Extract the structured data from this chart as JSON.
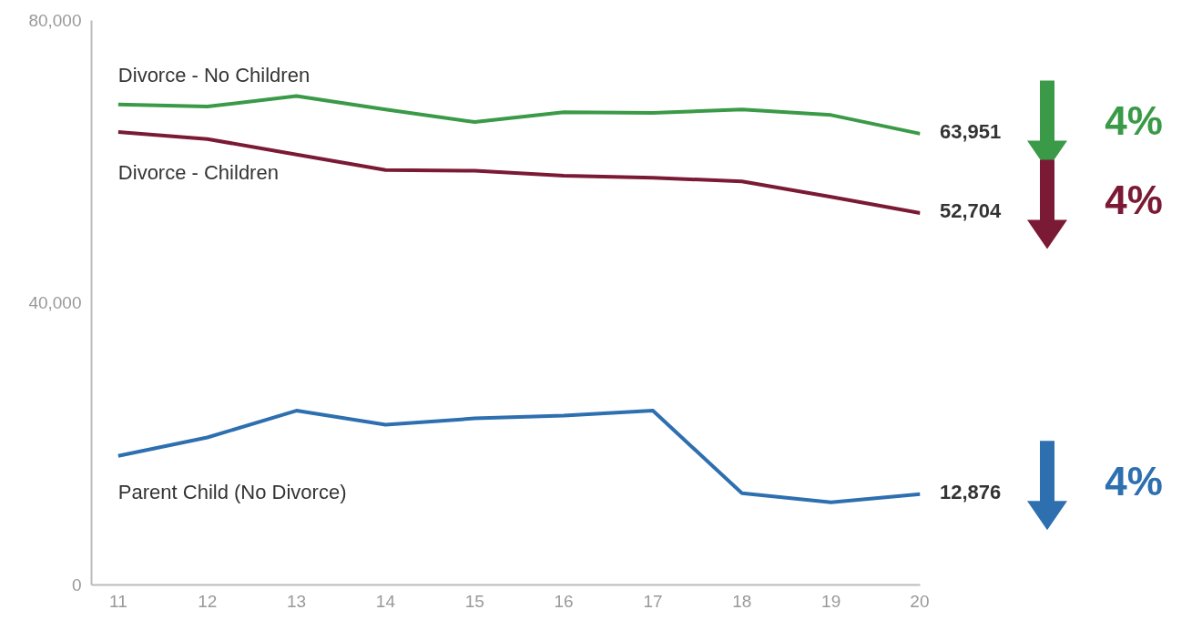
{
  "chart_data": {
    "type": "line",
    "x": [
      11,
      12,
      13,
      14,
      15,
      16,
      17,
      18,
      19,
      20
    ],
    "xlim": [
      10.7,
      20
    ],
    "xticks": [
      11,
      12,
      13,
      14,
      15,
      16,
      17,
      18,
      19,
      20
    ],
    "ylim": [
      0,
      80000
    ],
    "yticks": [
      0,
      {
        "value": 40000,
        "label": "40,000"
      },
      {
        "value": 80000,
        "label": "80,000"
      }
    ],
    "grid": false,
    "legend": false,
    "marker": "none",
    "line_style": "solid",
    "series": [
      {
        "name": "Divorce - No Children",
        "color": "#3a9a47",
        "values": [
          68100,
          67800,
          69300,
          67400,
          65600,
          67000,
          66900,
          67400,
          66600,
          63951
        ],
        "value_labels": [
          null,
          null,
          null,
          null,
          null,
          null,
          null,
          null,
          null,
          "63,951"
        ]
      },
      {
        "name": "Divorce - Children",
        "color": "#7a1a35",
        "values": [
          64200,
          63200,
          61000,
          58800,
          58700,
          58000,
          57700,
          57200,
          55000,
          52704
        ],
        "value_labels": [
          null,
          null,
          null,
          null,
          null,
          null,
          null,
          null,
          null,
          "52,704"
        ]
      },
      {
        "name": "Parent Child (No Divorce)",
        "color": "#2e6fb0",
        "values": [
          18300,
          20900,
          24700,
          22700,
          23600,
          24000,
          24700,
          13000,
          11700,
          12876
        ],
        "value_labels": [
          null,
          null,
          null,
          null,
          null,
          null,
          null,
          null,
          null,
          "12,876"
        ]
      }
    ],
    "annotations": [
      "4%",
      "4%",
      "4%"
    ]
  }
}
